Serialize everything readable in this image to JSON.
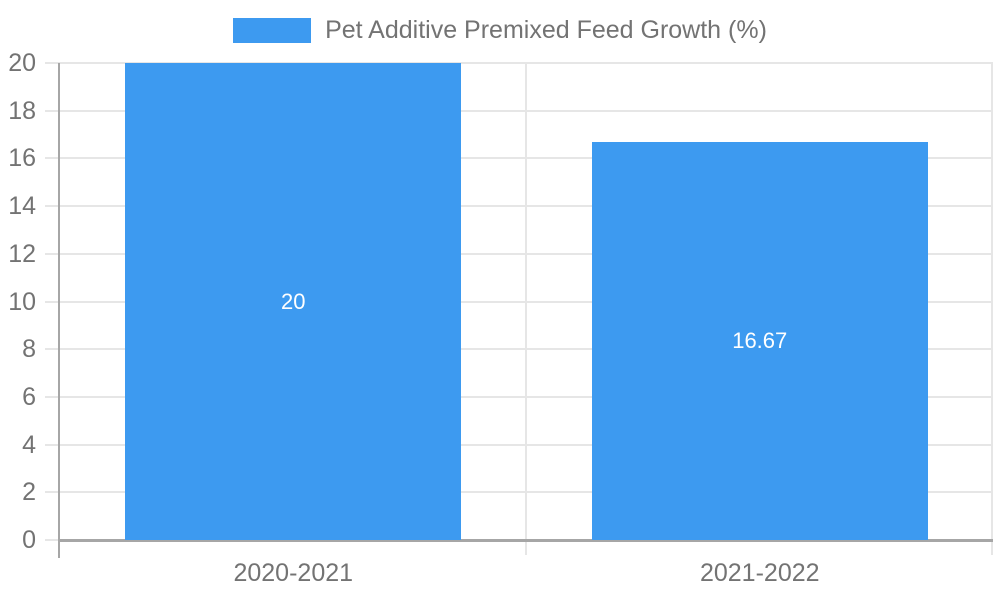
{
  "chart_data": {
    "type": "bar",
    "title": "",
    "legend": {
      "label": "Pet Additive Premixed Feed Growth (%)",
      "position": "top"
    },
    "categories": [
      "2020-2021",
      "2021-2022"
    ],
    "values": [
      20,
      16.67
    ],
    "bar_labels": [
      "20",
      "16.67"
    ],
    "xlabel": "",
    "ylabel": "",
    "ylim": [
      0,
      20
    ],
    "yticks": [
      0,
      2,
      4,
      6,
      8,
      10,
      12,
      14,
      16,
      18,
      20
    ],
    "grid": true,
    "colors": {
      "bar": "#3D9AF0",
      "grid": "#e6e6e6",
      "axis": "#a6a6a6",
      "text": "#737373",
      "bar_label": "#ffffff",
      "background": "#ffffff"
    }
  }
}
